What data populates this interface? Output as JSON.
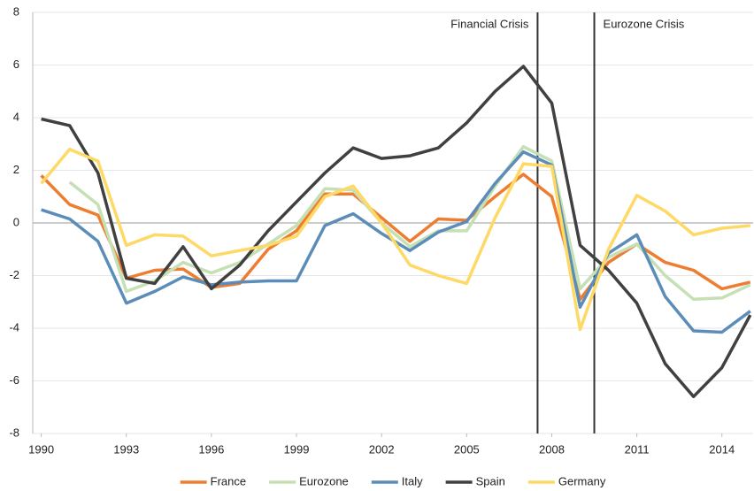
{
  "chart_data": {
    "type": "line",
    "x": [
      1990,
      1991,
      1992,
      1993,
      1994,
      1995,
      1996,
      1997,
      1998,
      1999,
      2000,
      2001,
      2002,
      2003,
      2004,
      2005,
      2006,
      2007,
      2008,
      2009,
      2010,
      2011,
      2012,
      2013,
      2014,
      2015
    ],
    "xlim": [
      1989.7,
      2015.1
    ],
    "xticks": [
      1990,
      1993,
      1996,
      1999,
      2002,
      2005,
      2008,
      2011,
      2014
    ],
    "ylim": [
      -8,
      8
    ],
    "yticks": [
      -8,
      -6,
      -4,
      -2,
      0,
      2,
      4,
      6,
      8
    ],
    "grid": true,
    "legend": "bottom",
    "vlines": [
      {
        "x": 2007.5,
        "label": "Financial Crisis"
      },
      {
        "x": 2009.5,
        "label": "Eurozone Crisis"
      }
    ],
    "series": [
      {
        "name": "France",
        "color": "#ed7d31",
        "values": [
          1.8,
          0.7,
          0.3,
          -2.1,
          -1.8,
          -1.75,
          -2.45,
          -2.3,
          -1.0,
          -0.3,
          1.1,
          1.1,
          0.2,
          -0.7,
          0.15,
          0.1,
          1.0,
          1.85,
          1.0,
          -2.9,
          -1.5,
          -0.8,
          -1.5,
          -1.8,
          -2.5,
          -2.25
        ]
      },
      {
        "name": "Eurozone",
        "color": "#c5e0b4",
        "values": [
          null,
          1.55,
          0.7,
          -2.6,
          -2.2,
          -1.5,
          -1.9,
          -1.5,
          -0.8,
          -0.1,
          1.3,
          1.25,
          0.0,
          -0.9,
          -0.3,
          -0.3,
          1.4,
          2.9,
          2.35,
          -2.5,
          -1.3,
          -0.8,
          -2.0,
          -2.9,
          -2.85,
          -2.35
        ]
      },
      {
        "name": "Italy",
        "color": "#5b8db8",
        "values": [
          0.5,
          0.15,
          -0.7,
          -3.05,
          -2.6,
          -2.05,
          -2.35,
          -2.25,
          -2.2,
          -2.2,
          -0.1,
          0.35,
          -0.4,
          -1.05,
          -0.35,
          0.05,
          1.5,
          2.7,
          2.2,
          -3.2,
          -1.15,
          -0.45,
          -2.8,
          -4.1,
          -4.15,
          -3.35
        ]
      },
      {
        "name": "Spain",
        "color": "#404040",
        "values": [
          3.95,
          3.7,
          1.9,
          -2.1,
          -2.3,
          -0.9,
          -2.5,
          -1.6,
          -0.3,
          0.8,
          1.9,
          2.85,
          2.45,
          2.55,
          2.85,
          3.8,
          5.0,
          5.95,
          4.55,
          -0.85,
          -1.8,
          -3.05,
          -5.35,
          -6.6,
          -5.5,
          -3.5
        ]
      },
      {
        "name": "Germany",
        "color": "#ffd966",
        "values": [
          1.5,
          2.8,
          2.35,
          -0.85,
          -0.45,
          -0.5,
          -1.25,
          -1.05,
          -0.85,
          -0.5,
          1.0,
          1.4,
          0.0,
          -1.6,
          -2.0,
          -2.3,
          0.2,
          2.25,
          2.15,
          -4.05,
          -1.0,
          1.05,
          0.45,
          -0.45,
          -0.2,
          -0.1
        ]
      }
    ]
  }
}
